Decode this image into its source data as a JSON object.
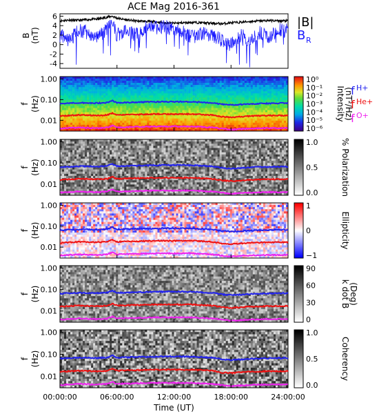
{
  "chart_data": [
    {
      "type": "line",
      "title": "ACE Mag 2016-361",
      "ylabel": "B",
      "yunit": "(nT)",
      "ylim": [
        -5,
        6.5
      ],
      "yticks": [
        "6",
        "4",
        "2",
        "0",
        "-2",
        "-4"
      ],
      "legend": [
        {
          "name": "|B|",
          "color": "#000000"
        },
        {
          "name": "B",
          "sub": "R",
          "color": "#1a1aff"
        }
      ],
      "series": [
        {
          "name": "|B|",
          "color": "#000000",
          "x": [
            0,
            1,
            2,
            3,
            4,
            5,
            5.5,
            6,
            7,
            8,
            9,
            10,
            11,
            12,
            13,
            14,
            15,
            16,
            17,
            18,
            19,
            20,
            21,
            22,
            23,
            24
          ],
          "values": [
            5.0,
            5.2,
            5.1,
            5.3,
            5.4,
            5.8,
            6.0,
            5.6,
            5.2,
            5.0,
            4.9,
            4.8,
            4.6,
            4.5,
            4.6,
            4.7,
            4.6,
            4.5,
            4.4,
            4.6,
            4.7,
            4.9,
            5.0,
            5.1,
            5.0,
            5.0
          ]
        },
        {
          "name": "B_R",
          "color": "#1a1aff",
          "x": [
            0,
            1,
            2,
            3,
            4,
            5,
            5.5,
            6,
            7,
            8,
            9,
            10,
            11,
            12,
            13,
            14,
            15,
            16,
            17,
            18,
            19,
            20,
            21,
            22,
            23,
            24
          ],
          "values": [
            2.0,
            1.0,
            3.0,
            2.5,
            1.5,
            3.5,
            4.5,
            2.0,
            3.0,
            2.0,
            3.5,
            3.5,
            4.0,
            3.0,
            2.5,
            1.5,
            2.5,
            2.0,
            1.0,
            0.0,
            2.0,
            1.0,
            2.5,
            1.5,
            3.0,
            3.0
          ]
        }
      ]
    },
    {
      "type": "heatmap",
      "ylabel": "f",
      "yunit": "(Hz)",
      "yticks": [
        "1.00",
        "0.10",
        "0.01"
      ],
      "colorbar": {
        "label": "Intensity",
        "unit": "(nT²/Hz)",
        "ticks": [
          "10⁰",
          "10⁻¹",
          "10⁻²",
          "10⁻³",
          "10⁻⁴",
          "10⁻⁵",
          "10⁻⁶"
        ]
      },
      "legend": [
        {
          "name": "f",
          "sub": "H+",
          "color": "#2222ee"
        },
        {
          "name": "f",
          "sub": "He+",
          "color": "#ee1111"
        },
        {
          "name": "f",
          "sub": "O+",
          "color": "#ee22ee"
        }
      ]
    },
    {
      "type": "heatmap",
      "ylabel": "f",
      "yunit": "(Hz)",
      "yticks": [
        "1.00",
        "0.10",
        "0.01"
      ],
      "colorbar": {
        "label": "% Polarization",
        "ticks": [
          "1.0",
          "0.5",
          "0.0"
        ]
      }
    },
    {
      "type": "heatmap",
      "ylabel": "f",
      "yunit": "(Hz)",
      "yticks": [
        "1.00",
        "0.10",
        "0.01"
      ],
      "colorbar": {
        "label": "Ellipticity",
        "ticks": [
          "1",
          "0",
          "−1"
        ]
      }
    },
    {
      "type": "heatmap",
      "ylabel": "f",
      "yunit": "(Hz)",
      "yticks": [
        "1.00",
        "0.10",
        "0.01"
      ],
      "colorbar": {
        "label": "k dot B",
        "unit": "(Deg)",
        "ticks": [
          "90",
          "60",
          "30",
          "0"
        ]
      }
    },
    {
      "type": "heatmap",
      "ylabel": "f",
      "yunit": "(Hz)",
      "yticks": [
        "1.00",
        "0.10",
        "0.01"
      ],
      "colorbar": {
        "label": "Coherency",
        "ticks": [
          "1.0",
          "0.5",
          "0.0"
        ]
      }
    }
  ],
  "xaxis": {
    "label": "Time (UT)",
    "ticks": [
      "00:00:00",
      "06:00:00",
      "12:00:00",
      "18:00:00",
      "24:00:00"
    ]
  },
  "cyclotron": {
    "x": [
      0,
      2,
      4,
      5,
      5.5,
      6,
      8,
      10,
      12,
      14,
      16,
      17,
      18,
      19,
      20,
      22,
      24
    ],
    "fH": [
      0.065,
      0.07,
      0.068,
      0.072,
      0.09,
      0.07,
      0.075,
      0.078,
      0.08,
      0.078,
      0.07,
      0.06,
      0.055,
      0.058,
      0.062,
      0.066,
      0.068
    ],
    "fHe": [
      0.016,
      0.018,
      0.017,
      0.018,
      0.022,
      0.018,
      0.019,
      0.02,
      0.02,
      0.02,
      0.018,
      0.015,
      0.014,
      0.015,
      0.016,
      0.017,
      0.017
    ],
    "fO": [
      0.004,
      0.0045,
      0.0042,
      0.0045,
      0.0055,
      0.0045,
      0.0048,
      0.005,
      0.005,
      0.005,
      0.0045,
      0.004,
      0.0035,
      0.0038,
      0.004,
      0.0042,
      0.0042
    ]
  }
}
